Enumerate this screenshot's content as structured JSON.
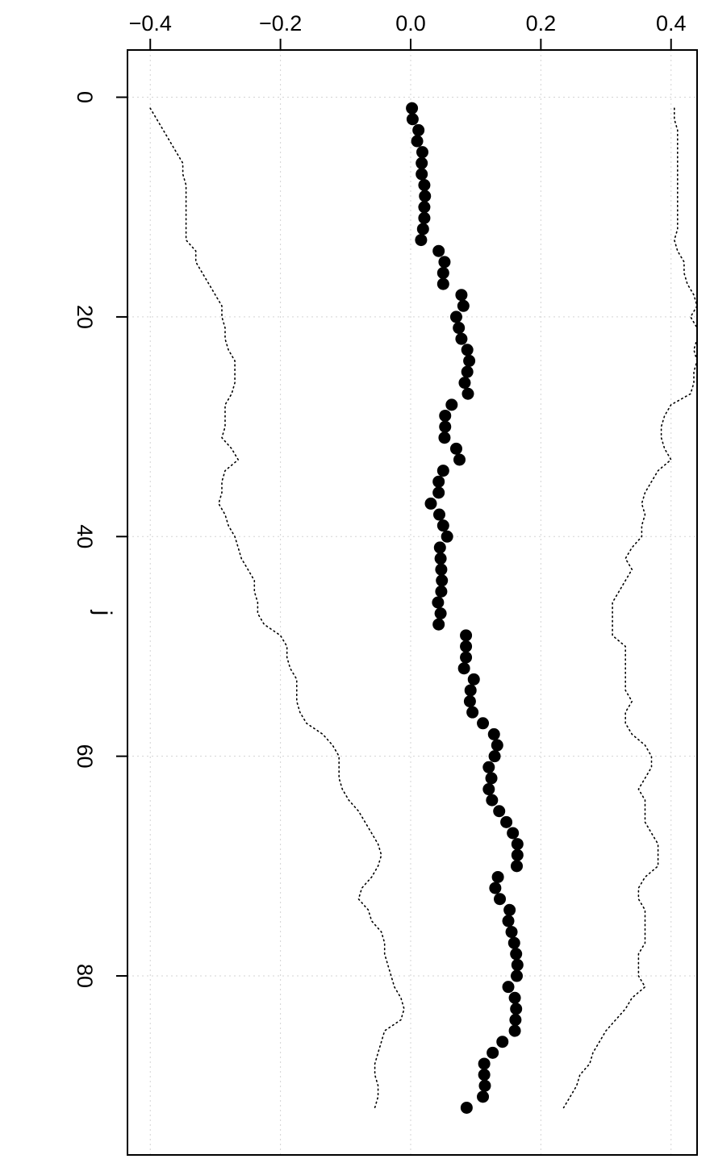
{
  "chart_data": {
    "type": "scatter",
    "orientation": "rotated-90",
    "title": "",
    "xlabel": "j",
    "ylabel": "",
    "x_ticks": [
      0,
      20,
      40,
      60,
      80
    ],
    "y_ticks": [
      -0.4,
      -0.2,
      0.0,
      0.2,
      0.4
    ],
    "y_tick_labels": [
      "−0.4",
      "−0.2",
      "0.0",
      "0.2",
      "0.4"
    ],
    "xlim": [
      -4.3,
      96.3
    ],
    "ylim": [
      -0.435,
      0.44
    ],
    "grid": true,
    "series": [
      {
        "role": "points",
        "marker": "filled-circle",
        "color": "#000000",
        "x": [
          1,
          2,
          3,
          4,
          5,
          6,
          7,
          8,
          9,
          10,
          11,
          12,
          13,
          14,
          15,
          16,
          17,
          18,
          19,
          20,
          21,
          22,
          23,
          24,
          25,
          26,
          27,
          28,
          29,
          30,
          31,
          32,
          33,
          34,
          35,
          36,
          37,
          38,
          39,
          40,
          41,
          42,
          43,
          44,
          45,
          46,
          47,
          48,
          49,
          50,
          51,
          52,
          53,
          54,
          55,
          56,
          57,
          58,
          59,
          60,
          61,
          62,
          63,
          64,
          65,
          66,
          67,
          68,
          69,
          70,
          71,
          72,
          73,
          74,
          75,
          76,
          77,
          78,
          79,
          80,
          81,
          82,
          83,
          84,
          85,
          86,
          87,
          88,
          89,
          90,
          91,
          92
        ],
        "y": [
          0.002,
          0.003,
          0.012,
          0.01,
          0.018,
          0.017,
          0.017,
          0.021,
          0.022,
          0.021,
          0.021,
          0.019,
          0.016,
          0.043,
          0.052,
          0.05,
          0.05,
          0.078,
          0.081,
          0.07,
          0.074,
          0.078,
          0.087,
          0.09,
          0.087,
          0.083,
          0.088,
          0.063,
          0.053,
          0.053,
          0.052,
          0.07,
          0.075,
          0.05,
          0.043,
          0.043,
          0.031,
          0.044,
          0.05,
          0.056,
          0.045,
          0.046,
          0.047,
          0.048,
          0.047,
          0.042,
          0.046,
          0.043,
          0.085,
          0.085,
          0.085,
          0.082,
          0.097,
          0.092,
          0.091,
          0.095,
          0.111,
          0.128,
          0.133,
          0.129,
          0.12,
          0.124,
          0.12,
          0.125,
          0.136,
          0.147,
          0.157,
          0.164,
          0.164,
          0.163,
          0.134,
          0.13,
          0.137,
          0.152,
          0.15,
          0.155,
          0.159,
          0.162,
          0.164,
          0.163,
          0.15,
          0.16,
          0.162,
          0.161,
          0.16,
          0.141,
          0.126,
          0.113,
          0.113,
          0.114,
          0.111,
          0.086
        ]
      },
      {
        "role": "lower-bound",
        "line": "dotted",
        "color": "#000000",
        "x": [
          1,
          2,
          3,
          4,
          5,
          6,
          7,
          8,
          9,
          10,
          11,
          12,
          13,
          14,
          15,
          16,
          17,
          18,
          19,
          20,
          21,
          22,
          23,
          24,
          25,
          26,
          27,
          28,
          29,
          30,
          31,
          32,
          33,
          34,
          35,
          36,
          37,
          38,
          39,
          40,
          41,
          42,
          43,
          44,
          45,
          46,
          47,
          48,
          49,
          50,
          51,
          52,
          53,
          54,
          55,
          56,
          57,
          58,
          59,
          60,
          61,
          62,
          63,
          64,
          65,
          66,
          67,
          68,
          69,
          70,
          71,
          72,
          73,
          74,
          75,
          76,
          77,
          78,
          79,
          80,
          81,
          82,
          83,
          84,
          85,
          86,
          87,
          88,
          89,
          90,
          91,
          92
        ],
        "y": [
          -0.4,
          -0.39,
          -0.38,
          -0.37,
          -0.36,
          -0.35,
          -0.35,
          -0.345,
          -0.345,
          -0.345,
          -0.345,
          -0.345,
          -0.345,
          -0.33,
          -0.33,
          -0.32,
          -0.31,
          -0.3,
          -0.29,
          -0.29,
          -0.285,
          -0.285,
          -0.28,
          -0.27,
          -0.27,
          -0.27,
          -0.275,
          -0.285,
          -0.285,
          -0.285,
          -0.29,
          -0.275,
          -0.265,
          -0.285,
          -0.29,
          -0.29,
          -0.295,
          -0.285,
          -0.28,
          -0.27,
          -0.265,
          -0.26,
          -0.25,
          -0.24,
          -0.24,
          -0.235,
          -0.235,
          -0.225,
          -0.2,
          -0.19,
          -0.19,
          -0.185,
          -0.175,
          -0.175,
          -0.175,
          -0.17,
          -0.16,
          -0.135,
          -0.12,
          -0.11,
          -0.11,
          -0.11,
          -0.105,
          -0.095,
          -0.08,
          -0.07,
          -0.06,
          -0.05,
          -0.045,
          -0.05,
          -0.06,
          -0.075,
          -0.08,
          -0.065,
          -0.06,
          -0.045,
          -0.04,
          -0.04,
          -0.035,
          -0.03,
          -0.025,
          -0.015,
          -0.01,
          -0.015,
          -0.04,
          -0.045,
          -0.05,
          -0.055,
          -0.055,
          -0.05,
          -0.05,
          -0.055
        ]
      },
      {
        "role": "upper-bound",
        "line": "dotted",
        "color": "#000000",
        "x": [
          1,
          2,
          3,
          4,
          5,
          6,
          7,
          8,
          9,
          10,
          11,
          12,
          13,
          14,
          15,
          16,
          17,
          18,
          19,
          20,
          21,
          22,
          23,
          24,
          25,
          26,
          27,
          28,
          29,
          30,
          31,
          32,
          33,
          34,
          35,
          36,
          37,
          38,
          39,
          40,
          41,
          42,
          43,
          44,
          45,
          46,
          47,
          48,
          49,
          50,
          51,
          52,
          53,
          54,
          55,
          56,
          57,
          58,
          59,
          60,
          61,
          62,
          63,
          64,
          65,
          66,
          67,
          68,
          69,
          70,
          71,
          72,
          73,
          74,
          75,
          76,
          77,
          78,
          79,
          80,
          81,
          82,
          83,
          84,
          85,
          86,
          87,
          88,
          89,
          90,
          91,
          92
        ],
        "y": [
          0.405,
          0.405,
          0.41,
          0.41,
          0.41,
          0.41,
          0.41,
          0.41,
          0.41,
          0.41,
          0.41,
          0.41,
          0.405,
          0.41,
          0.42,
          0.42,
          0.425,
          0.435,
          0.44,
          0.43,
          0.44,
          0.44,
          0.435,
          0.44,
          0.435,
          0.435,
          0.43,
          0.4,
          0.39,
          0.385,
          0.385,
          0.39,
          0.4,
          0.38,
          0.37,
          0.36,
          0.355,
          0.36,
          0.355,
          0.355,
          0.34,
          0.33,
          0.34,
          0.33,
          0.32,
          0.31,
          0.31,
          0.31,
          0.31,
          0.33,
          0.33,
          0.33,
          0.33,
          0.33,
          0.34,
          0.33,
          0.33,
          0.34,
          0.36,
          0.37,
          0.37,
          0.36,
          0.35,
          0.36,
          0.36,
          0.36,
          0.37,
          0.38,
          0.38,
          0.38,
          0.36,
          0.35,
          0.35,
          0.36,
          0.36,
          0.36,
          0.36,
          0.35,
          0.35,
          0.35,
          0.36,
          0.34,
          0.33,
          0.315,
          0.3,
          0.29,
          0.28,
          0.275,
          0.26,
          0.255,
          0.245,
          0.235
        ]
      }
    ]
  }
}
